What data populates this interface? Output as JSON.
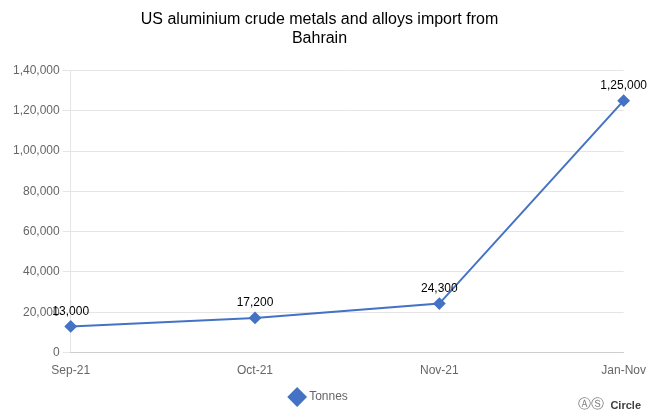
{
  "chart_data": {
    "type": "line",
    "title": "US aluminium crude metals and alloys import from\nBahrain",
    "categories": [
      "Sep-21",
      "Oct-21",
      "Nov-21",
      "Jan-Nov"
    ],
    "series": [
      {
        "name": "Tonnes",
        "color": "#4472C4",
        "marker": "diamond",
        "values": [
          13000,
          17200,
          24300,
          125000
        ],
        "value_labels": [
          "13,000",
          "17,200",
          "24,300",
          "1,25,000"
        ]
      }
    ],
    "data_labels": true,
    "ylim": [
      0,
      140000
    ],
    "yticks": [
      0,
      {
        "value": 20000,
        "label": "20,000"
      },
      {
        "value": 40000,
        "label": "40,000"
      },
      {
        "value": 60000,
        "label": "60,000"
      },
      {
        "value": 80000,
        "label": "80,000"
      },
      {
        "value": 100000,
        "label": "1,00,000"
      },
      {
        "value": 120000,
        "label": "1,20,000"
      },
      {
        "value": 140000,
        "label": "1,40,000"
      }
    ],
    "grid": true,
    "legend": "bottom",
    "annotations": [
      "ⒶⓈ",
      "Circle"
    ]
  }
}
